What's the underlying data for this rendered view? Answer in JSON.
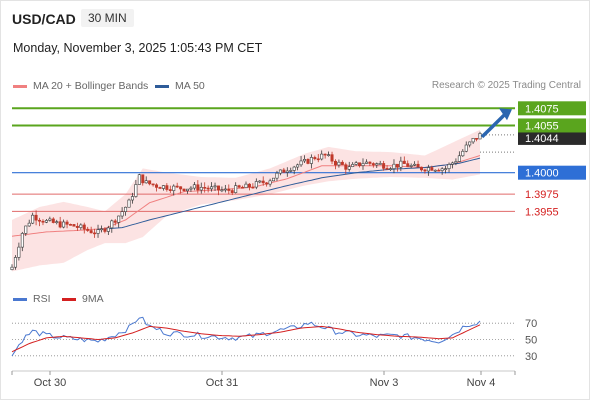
{
  "header": {
    "symbol": "USD/CAD",
    "interval": "30 MIN",
    "datetime": "Monday, November 3, 2025 1:05:43 PM CET"
  },
  "legend_main": [
    {
      "label": "MA 20 + Bollinger Bands",
      "color": "#f08080"
    },
    {
      "label": "MA 50",
      "color": "#2e5c99"
    }
  ],
  "credit": "Research © 2025 Trading Central",
  "legend_rsi": [
    {
      "label": "RSI",
      "color": "#4a78d0"
    },
    {
      "label": "9MA",
      "color": "#d42020"
    }
  ],
  "colors": {
    "resistance": "#5aa51e",
    "pivot": "#2e6fd6",
    "support": "#e06a6a",
    "support_text": "#d42020",
    "arrow": "#2b66b0",
    "candle_up": "#3a3a3a",
    "candle_down": "#c0392b"
  },
  "chart_data": [
    {
      "type": "candlestick",
      "title": "USD/CAD 30 MIN",
      "y_range": [
        1.3875,
        1.4087
      ],
      "x_ticks": [
        "Oct 30",
        "Oct 31",
        "Nov 3",
        "Nov 4"
      ],
      "levels": [
        {
          "label": "1.4075",
          "value": 1.4075,
          "kind": "resistance"
        },
        {
          "label": "1.4055",
          "value": 1.4055,
          "kind": "resistance"
        },
        {
          "label": "1.4044",
          "value": 1.4044,
          "kind": "last"
        },
        {
          "label": "1.4000",
          "value": 1.4,
          "kind": "pivot"
        },
        {
          "label": "1.3975",
          "value": 1.3975,
          "kind": "support"
        },
        {
          "label": "1.3955",
          "value": 1.3955,
          "kind": "support"
        }
      ],
      "price_path": [
        [
          0,
          1.389
        ],
        [
          3,
          1.393
        ],
        [
          6,
          1.395
        ],
        [
          10,
          1.3943
        ],
        [
          14,
          1.394
        ],
        [
          18,
          1.3938
        ],
        [
          22,
          1.3933
        ],
        [
          25,
          1.393
        ],
        [
          28,
          1.3938
        ],
        [
          31,
          1.395
        ],
        [
          34,
          1.3965
        ],
        [
          37,
          1.3995
        ],
        [
          39,
          1.3988
        ],
        [
          42,
          1.3985
        ],
        [
          48,
          1.3982
        ],
        [
          55,
          1.3983
        ],
        [
          62,
          1.3979
        ],
        [
          68,
          1.3983
        ],
        [
          74,
          1.399
        ],
        [
          80,
          1.4005
        ],
        [
          85,
          1.4012
        ],
        [
          88,
          1.4018
        ],
        [
          91,
          1.402
        ],
        [
          94,
          1.4012
        ],
        [
          98,
          1.4005
        ],
        [
          102,
          1.4012
        ],
        [
          106,
          1.401
        ],
        [
          110,
          1.4008
        ],
        [
          114,
          1.401
        ],
        [
          118,
          1.4005
        ],
        [
          122,
          1.4006
        ],
        [
          126,
          1.4005
        ],
        [
          129,
          1.4015
        ],
        [
          132,
          1.403
        ],
        [
          134,
          1.4038
        ],
        [
          136,
          1.4044
        ]
      ],
      "ma20": [
        [
          0,
          1.3926
        ],
        [
          10,
          1.3931
        ],
        [
          20,
          1.3933
        ],
        [
          27,
          1.3935
        ],
        [
          33,
          1.3945
        ],
        [
          40,
          1.3965
        ],
        [
          50,
          1.3978
        ],
        [
          60,
          1.398
        ],
        [
          70,
          1.3983
        ],
        [
          80,
          1.3993
        ],
        [
          90,
          1.4008
        ],
        [
          100,
          1.4008
        ],
        [
          110,
          1.4008
        ],
        [
          120,
          1.4006
        ],
        [
          128,
          1.401
        ],
        [
          136,
          1.402
        ]
      ],
      "ma50": [
        [
          25,
          1.3934
        ],
        [
          32,
          1.3936
        ],
        [
          40,
          1.3945
        ],
        [
          50,
          1.3955
        ],
        [
          60,
          1.3965
        ],
        [
          70,
          1.3975
        ],
        [
          80,
          1.3985
        ],
        [
          90,
          1.3994
        ],
        [
          100,
          1.4
        ],
        [
          110,
          1.4004
        ],
        [
          120,
          1.4006
        ],
        [
          130,
          1.4011
        ],
        [
          136,
          1.4017
        ]
      ],
      "bb_upper": [
        [
          0,
          1.3945
        ],
        [
          8,
          1.396
        ],
        [
          15,
          1.3966
        ],
        [
          22,
          1.396
        ],
        [
          27,
          1.3955
        ],
        [
          33,
          1.3975
        ],
        [
          38,
          1.4005
        ],
        [
          45,
          1.4
        ],
        [
          55,
          1.3995
        ],
        [
          65,
          1.3994
        ],
        [
          75,
          1.4005
        ],
        [
          85,
          1.4022
        ],
        [
          92,
          1.403
        ],
        [
          100,
          1.4025
        ],
        [
          110,
          1.4024
        ],
        [
          120,
          1.402
        ],
        [
          128,
          1.4035
        ],
        [
          136,
          1.405
        ]
      ],
      "bb_lower": [
        [
          0,
          1.3885
        ],
        [
          8,
          1.3892
        ],
        [
          15,
          1.3895
        ],
        [
          22,
          1.391
        ],
        [
          27,
          1.3918
        ],
        [
          33,
          1.3918
        ],
        [
          38,
          1.3925
        ],
        [
          45,
          1.395
        ],
        [
          55,
          1.3963
        ],
        [
          65,
          1.3968
        ],
        [
          75,
          1.3975
        ],
        [
          85,
          1.3985
        ],
        [
          92,
          1.399
        ],
        [
          100,
          1.3993
        ],
        [
          110,
          1.3995
        ],
        [
          120,
          1.3994
        ],
        [
          128,
          1.3992
        ],
        [
          136,
          1.3998
        ]
      ]
    },
    {
      "type": "line",
      "title": "RSI",
      "y_ticks": [
        70,
        50,
        30
      ],
      "y_range": [
        20,
        80
      ],
      "series": [
        {
          "name": "RSI",
          "points": [
            [
              0,
              30
            ],
            [
              3,
              50
            ],
            [
              6,
              60
            ],
            [
              10,
              55
            ],
            [
              15,
              52
            ],
            [
              20,
              50
            ],
            [
              25,
              48
            ],
            [
              30,
              56
            ],
            [
              34,
              64
            ],
            [
              37,
              78
            ],
            [
              40,
              66
            ],
            [
              45,
              58
            ],
            [
              52,
              56
            ],
            [
              58,
              54
            ],
            [
              64,
              52
            ],
            [
              70,
              54
            ],
            [
              76,
              60
            ],
            [
              82,
              64
            ],
            [
              86,
              70
            ],
            [
              90,
              66
            ],
            [
              94,
              60
            ],
            [
              100,
              56
            ],
            [
              106,
              54
            ],
            [
              112,
              55
            ],
            [
              118,
              52
            ],
            [
              124,
              48
            ],
            [
              128,
              56
            ],
            [
              132,
              68
            ],
            [
              136,
              72
            ]
          ]
        },
        {
          "name": "9MA",
          "points": [
            [
              0,
              35
            ],
            [
              5,
              45
            ],
            [
              10,
              52
            ],
            [
              15,
              54
            ],
            [
              20,
              52
            ],
            [
              25,
              50
            ],
            [
              30,
              52
            ],
            [
              35,
              58
            ],
            [
              40,
              66
            ],
            [
              45,
              64
            ],
            [
              50,
              60
            ],
            [
              55,
              57
            ],
            [
              60,
              55
            ],
            [
              66,
              54
            ],
            [
              72,
              56
            ],
            [
              78,
              59
            ],
            [
              84,
              64
            ],
            [
              90,
              66
            ],
            [
              95,
              63
            ],
            [
              100,
              59
            ],
            [
              106,
              56
            ],
            [
              112,
              54
            ],
            [
              118,
              53
            ],
            [
              124,
              51
            ],
            [
              128,
              52
            ],
            [
              132,
              60
            ],
            [
              136,
              68
            ]
          ]
        }
      ]
    }
  ]
}
